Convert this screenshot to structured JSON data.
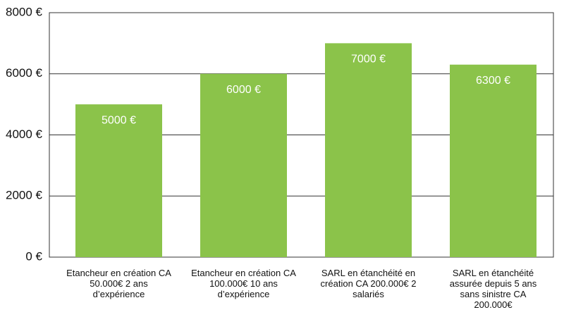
{
  "chart_data": {
    "type": "bar",
    "categories": [
      "Etancheur en création CA 50.000€ 2 ans d’expérience",
      "Etancheur en création CA 100.000€ 10 ans d’expérience",
      "SARL en étanchéité en création CA 200.000€ 2 salariés",
      "SARL en étanchéité assurée depuis 5 ans sans sinistre CA 200.000€"
    ],
    "values": [
      5000,
      6000,
      7000,
      6300
    ],
    "value_labels": [
      "5000 €",
      "6000 €",
      "7000 €",
      "6300 €"
    ],
    "color": "#8bc34a",
    "ylim": [
      0,
      8000
    ],
    "yticks": [
      {
        "value": 0,
        "label": "0 €"
      },
      {
        "value": 2000,
        "label": "2000 €"
      },
      {
        "value": 4000,
        "label": "4000 €"
      },
      {
        "value": 6000,
        "label": "6000 €"
      },
      {
        "value": 8000,
        "label": "8000 €"
      }
    ],
    "grid": true
  }
}
